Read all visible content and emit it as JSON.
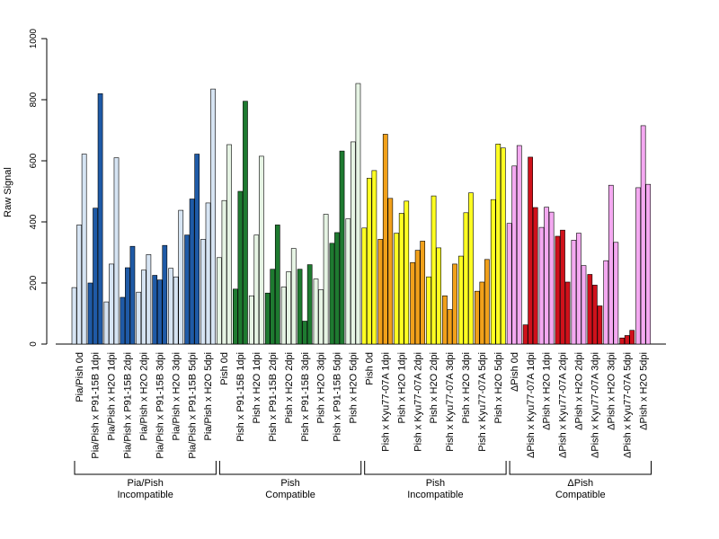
{
  "chart_data": {
    "type": "bar",
    "title": "",
    "xlabel": "",
    "ylabel": "Raw Signal",
    "ylim": [
      0,
      1000
    ],
    "yticks": [
      0,
      200,
      400,
      600,
      800,
      1000
    ],
    "grid": false,
    "legend": "none",
    "categories": [
      "Pia/Pish 0d",
      "Pia/Pish x P91-15B 1dpi",
      "Pia/Pish x H2O 1dpi",
      "Pia/Pish x P91-15B 2dpi",
      "Pia/Pish x H2O 2dpi",
      "Pia/Pish x P91-15B 3dpi",
      "Pia/Pish x H2O 3dpi",
      "Pia/Pish x P91-15B 5dpi",
      "Pia/Pish x H2O 5dpi",
      "Pish 0d",
      "Pish x P91-15B 1dpi",
      "Pish x H2O 1dpi",
      "Pish x P91-15B 2dpi",
      "Pish x H2O 2dpi",
      "Pish x P91-15B 3dpi",
      "Pish x H2O 3dpi",
      "Pish x P91-15B 5dpi",
      "Pish x H2O 5dpi",
      "Pish 0d",
      "Pish x Kyu77-07A 1dpi",
      "Pish x H2O 1dpi",
      "Pish x Kyu77-07A 2dpi",
      "Pish x H2O 2dpi",
      "Pish x Kyu77-07A 3dpi",
      "Pish x H2O 3dpi",
      "Pish x Kyu77-07A 5dpi",
      "Pish x H2O 5dpi",
      "ΔPish 0d",
      "ΔPish x Kyu77-07A 1dpi",
      "ΔPish x H2O 1dpi",
      "ΔPish x Kyu77-07A 2dpi",
      "ΔPish x H2O 2dpi",
      "ΔPish x Kyu77-07A 3dpi",
      "ΔPish x H2O 3dpi",
      "ΔPish x Kyu77-07A 5dpi",
      "ΔPish x H2O 5dpi"
    ],
    "values": [
      [
        185,
        390,
        622
      ],
      [
        200,
        445,
        820
      ],
      [
        138,
        262,
        610
      ],
      [
        153,
        250,
        320
      ],
      [
        170,
        242,
        293
      ],
      [
        225,
        210,
        323
      ],
      [
        248,
        220,
        438
      ],
      [
        357,
        475,
        622
      ],
      [
        343,
        462,
        835
      ],
      [
        283,
        470,
        653
      ],
      [
        180,
        500,
        795
      ],
      [
        158,
        357,
        615
      ],
      [
        167,
        245,
        390
      ],
      [
        187,
        237,
        313
      ],
      [
        245,
        75,
        260
      ],
      [
        213,
        178,
        425
      ],
      [
        330,
        365,
        632
      ],
      [
        410,
        662,
        853
      ],
      [
        380,
        543,
        568
      ],
      [
        343,
        687,
        477
      ],
      [
        363,
        428,
        468
      ],
      [
        267,
        307,
        337
      ],
      [
        220,
        485,
        315
      ],
      [
        158,
        113,
        262
      ],
      [
        288,
        430,
        495
      ],
      [
        173,
        203,
        277
      ],
      [
        473,
        655,
        642
      ],
      [
        395,
        583,
        650
      ],
      [
        63,
        612,
        447
      ],
      [
        382,
        448,
        432
      ],
      [
        353,
        373,
        203
      ],
      [
        340,
        363,
        257
      ],
      [
        228,
        193,
        125
      ],
      [
        273,
        520,
        333
      ],
      [
        20,
        28,
        45
      ],
      [
        512,
        715,
        523
      ]
    ],
    "groups": [
      {
        "label_line1": "Pia/Pish",
        "label_line2": "Incompatible",
        "start": 0,
        "end": 8,
        "infected_color": "#1f5aa6",
        "control_color": "#d6e4f3"
      },
      {
        "label_line1": "Pish",
        "label_line2": "Compatible",
        "start": 9,
        "end": 17,
        "infected_color": "#1e7a30",
        "control_color": "#e6f4e4"
      },
      {
        "label_line1": "Pish",
        "label_line2": "Incompatible",
        "start": 18,
        "end": 26,
        "infected_color": "#f1a01a",
        "control_color": "#ffff22"
      },
      {
        "label_line1": "ΔPish",
        "label_line2": "Compatible",
        "start": 27,
        "end": 35,
        "infected_color": "#d0111b",
        "control_color": "#f4a9f1"
      }
    ]
  }
}
